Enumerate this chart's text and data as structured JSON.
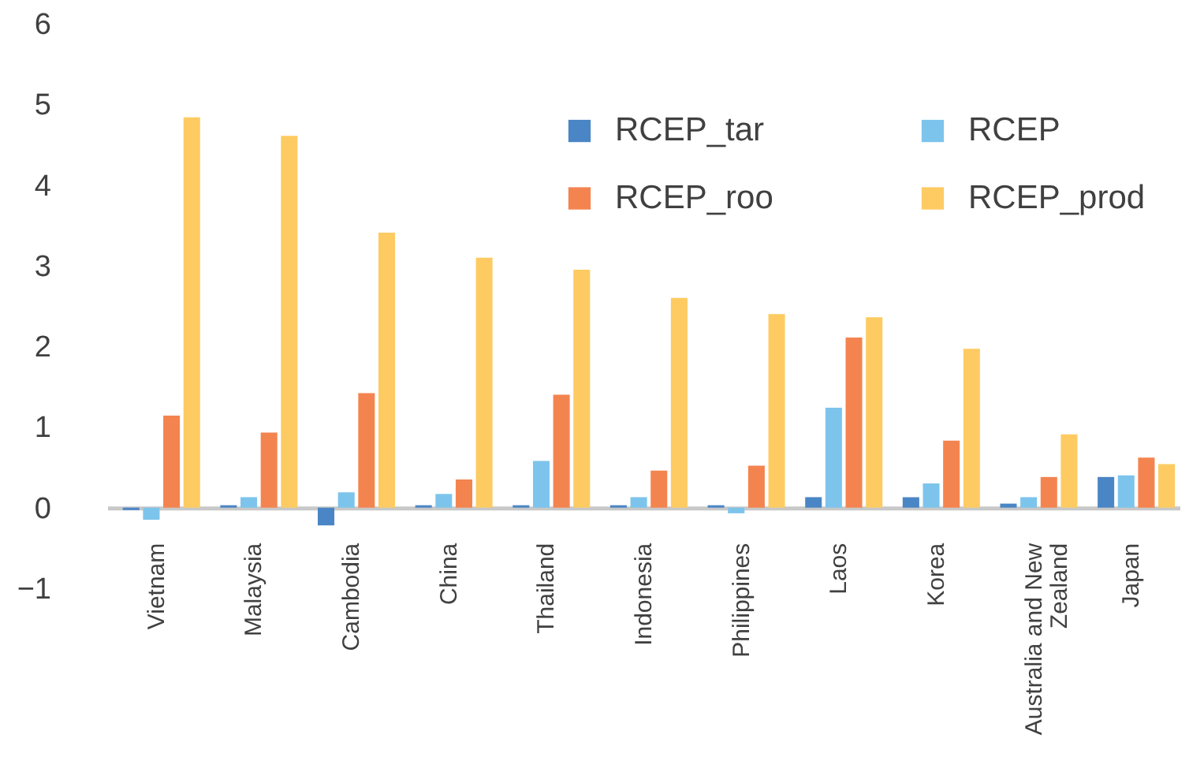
{
  "chart_data": {
    "type": "bar",
    "categories": [
      "Vietnam",
      "Malaysia",
      "Cambodia",
      "China",
      "Thailand",
      "Indonesia",
      "Philippines",
      "Laos",
      "Korea",
      "Australia and New Zealand",
      "Japan"
    ],
    "series": [
      {
        "name": "RCEP_tar",
        "color": "#4a86c5",
        "values": [
          -0.03,
          0.03,
          -0.22,
          0.03,
          0.03,
          0.03,
          0.03,
          0.13,
          0.13,
          0.05,
          0.38
        ]
      },
      {
        "name": "RCEP",
        "color": "#7cc4ec",
        "values": [
          -0.15,
          0.13,
          0.19,
          0.17,
          0.58,
          0.13,
          -0.07,
          1.24,
          0.3,
          0.13,
          0.4
        ]
      },
      {
        "name": "RCEP_roo",
        "color": "#f4844f",
        "values": [
          1.14,
          0.93,
          1.42,
          0.35,
          1.4,
          0.46,
          0.52,
          2.11,
          0.83,
          0.38,
          0.62
        ]
      },
      {
        "name": "RCEP_prod",
        "color": "#fdcb62",
        "values": [
          4.84,
          4.61,
          3.41,
          3.1,
          2.95,
          2.6,
          2.4,
          2.36,
          1.97,
          0.91,
          0.54
        ]
      }
    ],
    "ylim": [
      -1,
      6
    ],
    "yticks": [
      -1,
      0,
      1,
      2,
      3,
      4,
      5,
      6
    ],
    "legend": "top right",
    "grid": false
  }
}
